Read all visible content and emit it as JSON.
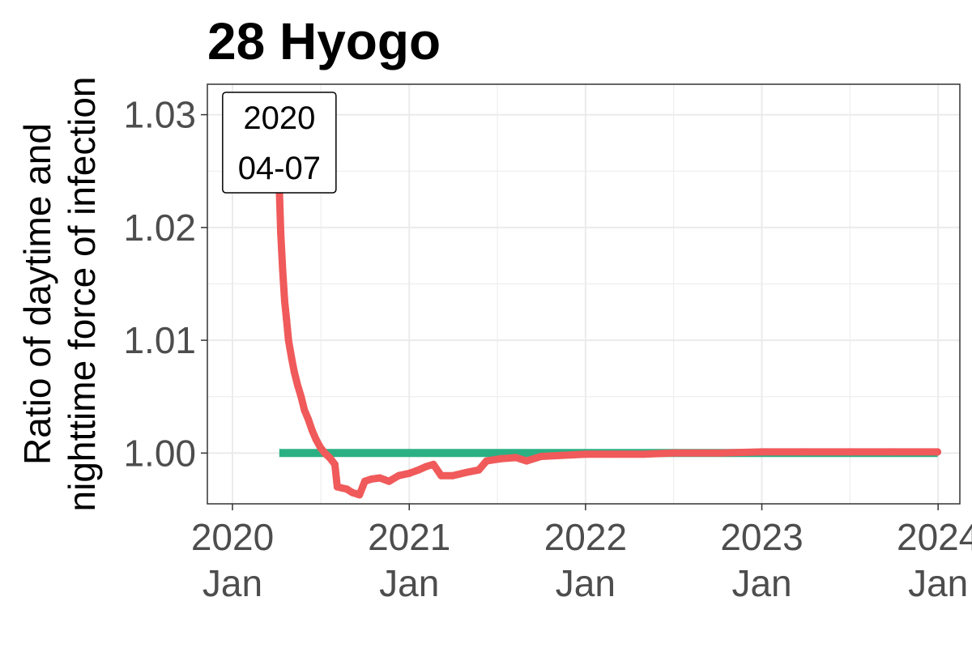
{
  "chart_data": {
    "type": "line",
    "title": "28 Hyogo",
    "xlabel": "",
    "ylabel_lines": [
      "Ratio of daytime and",
      "nighttime force of infection"
    ],
    "x_ticks": [
      {
        "year": "2020",
        "month": "Jan",
        "date": "2020-01-01"
      },
      {
        "year": "2021",
        "month": "Jan",
        "date": "2021-01-01"
      },
      {
        "year": "2022",
        "month": "Jan",
        "date": "2022-01-01"
      },
      {
        "year": "2023",
        "month": "Jan",
        "date": "2023-01-01"
      },
      {
        "year": "2024",
        "month": "Jan",
        "date": "2024-01-01"
      }
    ],
    "y_ticks": [
      "1.00",
      "1.01",
      "1.02",
      "1.03"
    ],
    "xlim": [
      "2019-11-10",
      "2024-02-15"
    ],
    "ylim": [
      0.9955,
      1.0327
    ],
    "grid": true,
    "annotation": {
      "lines": [
        "2020",
        "04-07"
      ],
      "date": "2020-04-07"
    },
    "colors": {
      "ratio": "#f05a5a",
      "reference": "#2bb084",
      "grid": "#ebebeb",
      "border": "#333333"
    },
    "series": [
      {
        "points": [
          [
            "2020-04-07",
            1.0235
          ],
          [
            "2020-04-10",
            1.0195
          ],
          [
            "2020-04-14",
            1.0162
          ],
          [
            "2020-04-18",
            1.0135
          ],
          [
            "2020-04-22",
            1.0118
          ],
          [
            "2020-04-26",
            1.01
          ],
          [
            "2020-05-02",
            1.0085
          ],
          [
            "2020-05-08",
            1.0072
          ],
          [
            "2020-05-15",
            1.006
          ],
          [
            "2020-05-22",
            1.005
          ],
          [
            "2020-05-29",
            1.0038
          ],
          [
            "2020-06-06",
            1.003
          ],
          [
            "2020-06-14",
            1.002
          ],
          [
            "2020-06-22",
            1.0012
          ],
          [
            "2020-07-01",
            1.0005
          ],
          [
            "2020-07-10",
            1.0
          ],
          [
            "2020-07-20",
            0.9996
          ],
          [
            "2020-07-31",
            0.999
          ],
          [
            "2020-08-05",
            0.997
          ],
          [
            "2020-08-25",
            0.9968
          ],
          [
            "2020-09-05",
            0.9965
          ],
          [
            "2020-09-20",
            0.9963
          ],
          [
            "2020-10-01",
            0.9975
          ],
          [
            "2020-10-15",
            0.9977
          ],
          [
            "2020-11-01",
            0.9978
          ],
          [
            "2020-11-20",
            0.9975
          ],
          [
            "2020-12-10",
            0.998
          ],
          [
            "2021-01-01",
            0.9982
          ],
          [
            "2021-01-20",
            0.9985
          ],
          [
            "2021-02-05",
            0.9988
          ],
          [
            "2021-02-20",
            0.999
          ],
          [
            "2021-03-08",
            0.998
          ],
          [
            "2021-04-01",
            0.998
          ],
          [
            "2021-05-01",
            0.9983
          ],
          [
            "2021-05-25",
            0.9985
          ],
          [
            "2021-06-10",
            0.9993
          ],
          [
            "2021-07-10",
            0.9995
          ],
          [
            "2021-08-10",
            0.9996
          ],
          [
            "2021-09-01",
            0.9993
          ],
          [
            "2021-10-01",
            0.9997
          ],
          [
            "2021-11-15",
            0.9998
          ],
          [
            "2022-01-01",
            0.9999
          ],
          [
            "2022-03-01",
            0.9999
          ],
          [
            "2022-05-01",
            0.9999
          ],
          [
            "2022-07-01",
            1.0
          ],
          [
            "2022-10-01",
            1.0
          ],
          [
            "2023-01-01",
            1.0001
          ],
          [
            "2023-04-01",
            1.0001
          ],
          [
            "2023-07-01",
            1.0001
          ],
          [
            "2023-10-01",
            1.0001
          ],
          [
            "2023-12-31",
            1.0001
          ]
        ]
      },
      {
        "points": [
          [
            "2020-04-07",
            1.0
          ],
          [
            "2023-12-31",
            1.0
          ]
        ]
      }
    ]
  }
}
